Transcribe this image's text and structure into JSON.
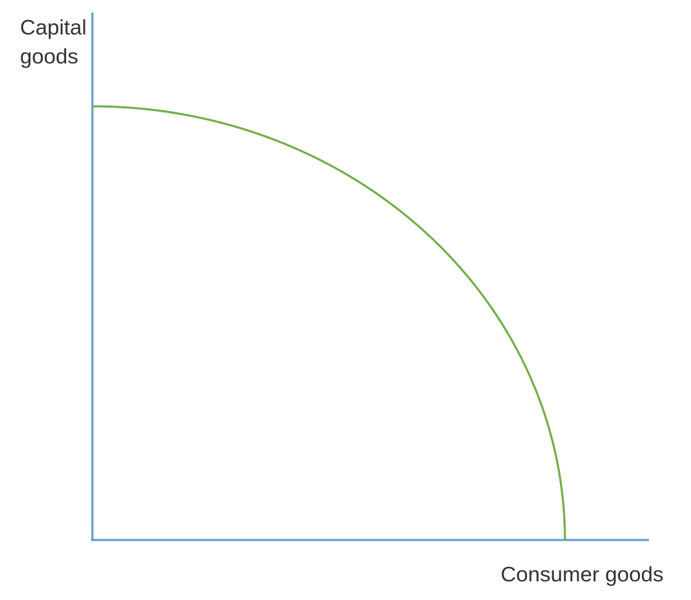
{
  "chart_data": {
    "type": "line",
    "title": "",
    "xlabel": "Consumer goods",
    "ylabel_lines": [
      "Capital",
      "goods"
    ],
    "xlim": [
      0,
      100
    ],
    "ylim": [
      0,
      100
    ],
    "grid": false,
    "legend": "none",
    "series": [
      {
        "name": "Production possibility frontier",
        "shape": "concave quarter-ellipse",
        "x_intercept": 84.8,
        "y_intercept": 82.2
      }
    ],
    "colors": {
      "axes": "#5b9bd5",
      "curve": "#70ad47",
      "text": "#333333"
    }
  }
}
